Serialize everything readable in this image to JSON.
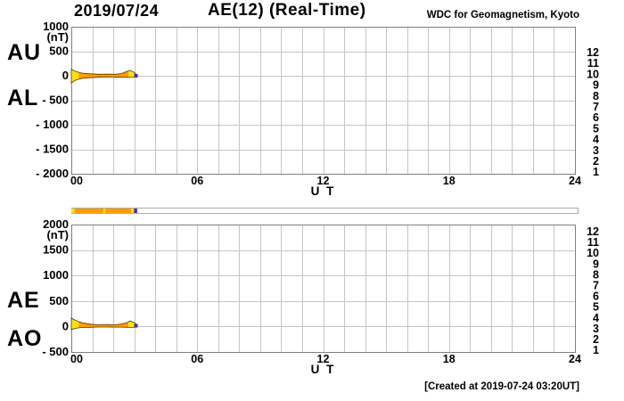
{
  "header": {
    "date": "2019/07/24",
    "title": "AE(12) (Real-Time)",
    "org": "WDC for Geomagnetism, Kyoto"
  },
  "footer": {
    "created": "[Created at 2019-07-24 03:20UT]"
  },
  "station_legend": {
    "counts": [
      "12",
      "11",
      "10",
      "9",
      "8",
      "7",
      "6",
      "5",
      "4",
      "3",
      "2",
      "1"
    ],
    "colors": [
      "#ee2d6e",
      "#ff3a1a",
      "#ff9c00",
      "#ffe400",
      "#86e02c",
      "#2fccc4",
      "#2d8ef2",
      "#4b3bdc",
      "#f230f2",
      "#111111",
      "#8d8d8d",
      "#c9c9c9"
    ]
  },
  "availability_bar": {
    "xlim": [
      0,
      24
    ],
    "background": "#ffffff",
    "border_color": "#ababab",
    "segments": [
      {
        "from_hour": 0.0,
        "to_hour": 0.15,
        "color": "#ffe400"
      },
      {
        "from_hour": 0.15,
        "to_hour": 1.52,
        "color": "#ff9c00"
      },
      {
        "from_hour": 1.52,
        "to_hour": 1.62,
        "color": "#ffe400"
      },
      {
        "from_hour": 1.62,
        "to_hour": 2.84,
        "color": "#ff9c00"
      },
      {
        "from_hour": 2.84,
        "to_hour": 2.97,
        "color": "#ffe400"
      },
      {
        "from_hour": 2.97,
        "to_hour": 3.12,
        "color": "#3f2fd0"
      }
    ]
  },
  "chart_data": [
    {
      "type": "area",
      "name": "AU / AL indices",
      "side_labels": [
        "AU",
        "AL"
      ],
      "unit": "(nT)",
      "ylim": [
        -2000,
        1000
      ],
      "ystep": 500,
      "ytick_labels": [
        "1000",
        "500",
        "0",
        "- 500",
        "- 1000",
        "- 1500",
        "- 2000"
      ],
      "xlim": [
        0,
        24
      ],
      "xgrid_step_hours": 1,
      "xticks": [
        {
          "hour": 0,
          "label": "00"
        },
        {
          "hour": 6,
          "label": "06"
        },
        {
          "hour": 12,
          "label": "12"
        },
        {
          "hour": 18,
          "label": "18"
        },
        {
          "hour": 24,
          "label": "24"
        }
      ],
      "xlabel": "U T",
      "grid": true,
      "band": {
        "hours": [
          0,
          0.2,
          0.5,
          0.9,
          1.3,
          1.7,
          2.1,
          2.4,
          2.65,
          2.8,
          3.0,
          3.1
        ],
        "upper": [
          130,
          90,
          55,
          40,
          30,
          35,
          30,
          45,
          90,
          110,
          70,
          25
        ],
        "lower": [
          -145,
          -90,
          -55,
          -40,
          -30,
          -25,
          -30,
          -30,
          -30,
          -35,
          -30,
          -25
        ],
        "outline_color": "#4d3800"
      },
      "fill_segments": [
        {
          "from_hour": 0.0,
          "to_hour": 0.35,
          "color": "#ffe400"
        },
        {
          "from_hour": 0.35,
          "to_hour": 2.72,
          "color": "#ff9c00"
        },
        {
          "from_hour": 2.72,
          "to_hour": 3.0,
          "color": "#ffe400"
        },
        {
          "from_hour": 3.0,
          "to_hour": 3.1,
          "color": "#ff9c00"
        }
      ],
      "end_marker": {
        "hour": 3.08,
        "color": "#3f2fd0"
      }
    },
    {
      "type": "area",
      "name": "AE / AO indices",
      "side_labels": [
        "AE",
        "AO"
      ],
      "unit": "(nT)",
      "ylim": [
        -500,
        2000
      ],
      "ystep": 500,
      "ytick_labels": [
        "2000",
        "1500",
        "1000",
        "500",
        "0",
        "- 500"
      ],
      "xlim": [
        0,
        24
      ],
      "xgrid_step_hours": 1,
      "xticks": [
        {
          "hour": 0,
          "label": "00"
        },
        {
          "hour": 6,
          "label": "06"
        },
        {
          "hour": 12,
          "label": "12"
        },
        {
          "hour": 18,
          "label": "18"
        },
        {
          "hour": 24,
          "label": "24"
        }
      ],
      "xlabel": "U T",
      "grid": true,
      "band": {
        "hours": [
          0,
          0.2,
          0.5,
          0.9,
          1.3,
          1.7,
          2.1,
          2.4,
          2.65,
          2.8,
          3.0,
          3.1
        ],
        "upper": [
          165,
          120,
          75,
          45,
          35,
          40,
          35,
          50,
          75,
          110,
          75,
          40
        ],
        "lower": [
          -60,
          -35,
          -20,
          -15,
          -10,
          -10,
          -12,
          -12,
          -15,
          -18,
          -15,
          -10
        ],
        "outline_color": "#4d3800"
      },
      "fill_segments": [
        {
          "from_hour": 0.0,
          "to_hour": 0.35,
          "color": "#ffe400"
        },
        {
          "from_hour": 0.35,
          "to_hour": 2.72,
          "color": "#ff9c00"
        },
        {
          "from_hour": 2.72,
          "to_hour": 3.0,
          "color": "#ffe400"
        },
        {
          "from_hour": 3.0,
          "to_hour": 3.1,
          "color": "#ff9c00"
        }
      ],
      "end_marker": {
        "hour": 3.08,
        "color": "#3f2fd0"
      }
    }
  ],
  "style": {
    "grid_color": "#c6c6c6",
    "frame_color": "#7f7f7f"
  }
}
